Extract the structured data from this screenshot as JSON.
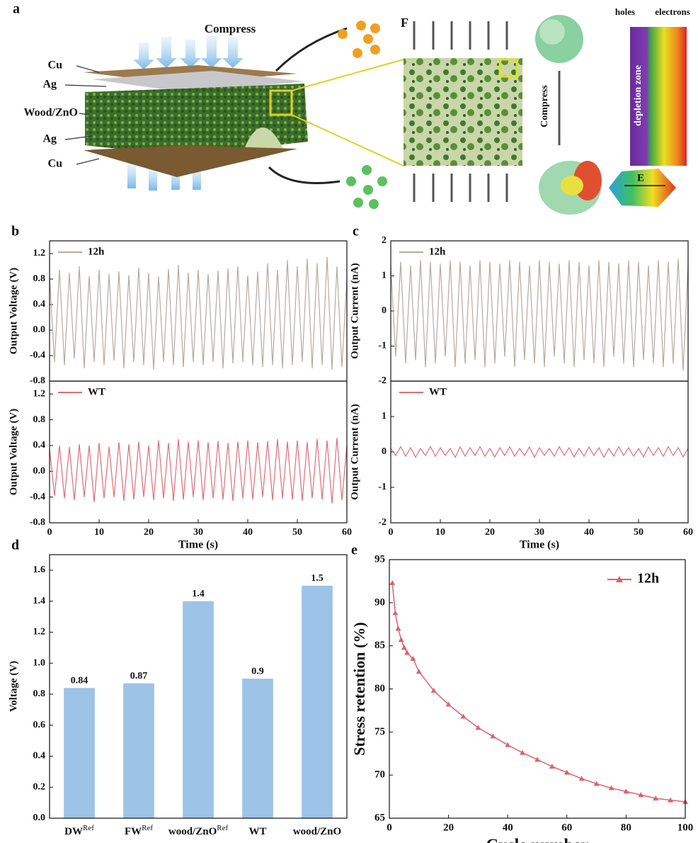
{
  "illustration": {
    "panel": "a",
    "compress_top": "Compress",
    "layer_1": "Cu",
    "layer_2": "Ag",
    "layer_3": "Wood/ZnO",
    "layer_4": "Ag",
    "layer_5": "Cu",
    "force": "F",
    "holes": "holes",
    "electrons": "electrons",
    "depletion": "depletion zone",
    "compress_side": "Compress",
    "field": "E"
  },
  "chart_data": [
    {
      "type": "line",
      "panel": "b",
      "ylabel": "Output Voltage (V)",
      "xlim": [
        0,
        60
      ],
      "ylim": [
        -0.8,
        1.4
      ],
      "yticks": [
        -0.8,
        -0.4,
        {
          "value": 0,
          "label": "0.0"
        },
        0.4,
        0.8,
        1.2
      ],
      "x": [
        0,
        1,
        2,
        3,
        4,
        5,
        6,
        7,
        8,
        9,
        10,
        11,
        12,
        13,
        14,
        15,
        16,
        17,
        18,
        19,
        20,
        21,
        22,
        23,
        24,
        25,
        26,
        27,
        28,
        29,
        30,
        31,
        32,
        33,
        34,
        35,
        36,
        37,
        38,
        39,
        40,
        41,
        42,
        43,
        44,
        45,
        46,
        47,
        48,
        49,
        50,
        51,
        52,
        53,
        54,
        55,
        56,
        57,
        58,
        59,
        60
      ],
      "series": [
        {
          "name": "12h",
          "color": "#b5aaa3",
          "values": [
            0.85,
            -0.5,
            0.95,
            -0.55,
            0.9,
            -0.45,
            1.0,
            -0.6,
            0.85,
            -0.5,
            0.95,
            -0.55,
            0.88,
            -0.48,
            0.92,
            -0.6,
            0.86,
            -0.5,
            0.98,
            -0.55,
            0.9,
            -0.62,
            0.84,
            -0.5,
            0.96,
            -0.55,
            1.02,
            -0.58,
            0.9,
            -0.5,
            0.95,
            -0.55,
            0.88,
            -0.5,
            0.93,
            -0.6,
            0.97,
            -0.52,
            1.0,
            -0.5,
            0.86,
            -0.55,
            0.92,
            -0.58,
            1.05,
            -0.55,
            0.95,
            -0.6,
            1.1,
            -0.55,
            1.0,
            -0.5,
            1.12,
            -0.6,
            1.05,
            -0.55,
            1.15,
            -0.62,
            1.0,
            -0.58,
            0.8
          ]
        }
      ]
    },
    {
      "type": "line",
      "ylabel": "Output Voltage (V)",
      "xlabel": "Time (s)",
      "xlim": [
        0,
        60
      ],
      "xticks": [
        0,
        10,
        20,
        30,
        40,
        50,
        60
      ],
      "ylim": [
        -0.8,
        1.4
      ],
      "yticks": [
        -0.8,
        -0.4,
        {
          "value": 0,
          "label": "0.0"
        },
        0.4,
        0.8,
        1.2
      ],
      "x": [
        0,
        1,
        2,
        3,
        4,
        5,
        6,
        7,
        8,
        9,
        10,
        11,
        12,
        13,
        14,
        15,
        16,
        17,
        18,
        19,
        20,
        21,
        22,
        23,
        24,
        25,
        26,
        27,
        28,
        29,
        30,
        31,
        32,
        33,
        34,
        35,
        36,
        37,
        38,
        39,
        40,
        41,
        42,
        43,
        44,
        45,
        46,
        47,
        48,
        49,
        50,
        51,
        52,
        53,
        54,
        55,
        56,
        57,
        58,
        59,
        60
      ],
      "series": [
        {
          "name": "WT",
          "color": "#de6f76",
          "values": [
            0.35,
            -0.38,
            0.4,
            -0.42,
            0.38,
            -0.45,
            0.42,
            -0.4,
            0.4,
            -0.48,
            0.44,
            -0.42,
            0.38,
            -0.4,
            0.45,
            -0.46,
            0.42,
            -0.44,
            0.46,
            -0.4,
            0.4,
            -0.45,
            0.48,
            -0.42,
            0.44,
            -0.46,
            0.5,
            -0.44,
            0.46,
            -0.4,
            0.48,
            -0.45,
            0.45,
            -0.42,
            0.47,
            -0.44,
            0.44,
            -0.46,
            0.46,
            -0.42,
            0.48,
            -0.44,
            0.45,
            -0.4,
            0.47,
            -0.45,
            0.5,
            -0.42,
            0.46,
            -0.44,
            0.48,
            -0.46,
            0.45,
            -0.42,
            0.5,
            -0.44,
            0.48,
            -0.5,
            0.52,
            -0.45,
            0.4
          ]
        }
      ]
    },
    {
      "type": "line",
      "panel": "c",
      "ylabel": "Output Current (nA)",
      "xlim": [
        0,
        60
      ],
      "ylim": [
        -2,
        2
      ],
      "yticks": [
        -2,
        -1,
        0,
        1,
        2
      ],
      "x": [
        0,
        1,
        2,
        3,
        4,
        5,
        6,
        7,
        8,
        9,
        10,
        11,
        12,
        13,
        14,
        15,
        16,
        17,
        18,
        19,
        20,
        21,
        22,
        23,
        24,
        25,
        26,
        27,
        28,
        29,
        30,
        31,
        32,
        33,
        34,
        35,
        36,
        37,
        38,
        39,
        40,
        41,
        42,
        43,
        44,
        45,
        46,
        47,
        48,
        49,
        50,
        51,
        52,
        53,
        54,
        55,
        56,
        57,
        58,
        59,
        60
      ],
      "series": [
        {
          "name": "12h",
          "color": "#b5aaa3",
          "values": [
            1.3,
            -1.3,
            1.4,
            -1.5,
            1.3,
            -1.4,
            1.45,
            -1.6,
            1.4,
            -1.5,
            1.35,
            -1.3,
            1.45,
            -1.6,
            1.4,
            -1.5,
            1.3,
            -1.4,
            1.45,
            -1.6,
            1.4,
            -1.5,
            1.35,
            -1.3,
            1.45,
            -1.6,
            1.4,
            -1.4,
            1.3,
            -1.5,
            1.45,
            -1.6,
            1.4,
            -1.3,
            1.35,
            -1.5,
            1.45,
            -1.6,
            1.4,
            -1.4,
            1.3,
            -1.5,
            1.45,
            -1.6,
            1.4,
            -1.3,
            1.35,
            -1.5,
            1.45,
            -1.6,
            1.4,
            -1.4,
            1.3,
            -1.5,
            1.45,
            -1.6,
            1.4,
            -1.5,
            1.48,
            -1.7,
            1.3
          ]
        }
      ]
    },
    {
      "type": "line",
      "ylabel": "Output Current (nA)",
      "xlabel": "Time (s)",
      "xlim": [
        0,
        60
      ],
      "xticks": [
        0,
        10,
        20,
        30,
        40,
        50,
        60
      ],
      "ylim": [
        -2,
        2
      ],
      "yticks": [
        -2,
        -1,
        0,
        1,
        2
      ],
      "x": [
        0,
        1,
        2,
        3,
        4,
        5,
        6,
        7,
        8,
        9,
        10,
        11,
        12,
        13,
        14,
        15,
        16,
        17,
        18,
        19,
        20,
        21,
        22,
        23,
        24,
        25,
        26,
        27,
        28,
        29,
        30,
        31,
        32,
        33,
        34,
        35,
        36,
        37,
        38,
        39,
        40,
        41,
        42,
        43,
        44,
        45,
        46,
        47,
        48,
        49,
        50,
        51,
        52,
        53,
        54,
        55,
        56,
        57,
        58,
        59,
        60
      ],
      "series": [
        {
          "name": "WT",
          "color": "#de6f76",
          "values": [
            0.1,
            -0.1,
            0.15,
            -0.12,
            0.12,
            -0.15,
            0.1,
            -0.1,
            0.15,
            -0.12,
            0.12,
            -0.1,
            0.1,
            -0.15,
            0.14,
            -0.12,
            0.12,
            -0.1,
            0.15,
            -0.12,
            0.1,
            -0.14,
            0.12,
            -0.1,
            0.15,
            -0.12,
            0.1,
            -0.1,
            0.14,
            -0.15,
            0.12,
            -0.1,
            0.1,
            -0.12,
            0.15,
            -0.1,
            0.12,
            -0.14,
            0.1,
            -0.12,
            0.14,
            -0.1,
            0.12,
            -0.15,
            0.1,
            -0.12,
            0.15,
            -0.1,
            0.12,
            -0.12,
            0.1,
            -0.14,
            0.14,
            -0.1,
            0.12,
            -0.12,
            0.15,
            -0.1,
            0.12,
            -0.14,
            0.1
          ]
        }
      ]
    },
    {
      "type": "bar",
      "panel": "d",
      "ylabel": "Voltage (V)",
      "color": "#9dc3e6",
      "ylim": [
        0,
        1.7
      ],
      "yticks": [
        {
          "value": 0,
          "label": "0.0"
        },
        0.2,
        0.4,
        0.6,
        0.8,
        {
          "value": 1,
          "label": "1.0"
        },
        1.2,
        1.4,
        1.6
      ],
      "categories": [
        "DW",
        "FW",
        "wood/ZnO",
        "WT",
        "wood/ZnO"
      ],
      "category_superscripts": [
        "Ref",
        "Ref",
        "Ref",
        null,
        null
      ],
      "values": [
        0.84,
        0.87,
        1.4,
        0.9,
        1.5
      ]
    },
    {
      "type": "line",
      "panel": "e",
      "ylabel": "Stress retention (%)",
      "xlabel": "Cycle number",
      "xlim": [
        0,
        100
      ],
      "xticks": [
        0,
        20,
        40,
        60,
        80,
        100
      ],
      "ylim": [
        65,
        95
      ],
      "yticks": [
        65,
        70,
        75,
        80,
        85,
        90,
        95
      ],
      "legend": "upper right",
      "marker": "triangle",
      "x": [
        1,
        2,
        3,
        4,
        5,
        6,
        8,
        10,
        15,
        20,
        25,
        30,
        35,
        40,
        45,
        50,
        55,
        60,
        65,
        70,
        75,
        80,
        85,
        90,
        95,
        100
      ],
      "series": [
        {
          "name": "12h",
          "color": "#d9646e",
          "values": [
            92.3,
            88.8,
            87,
            85.7,
            84.8,
            84.2,
            83.5,
            82,
            79.8,
            78.2,
            76.8,
            75.5,
            74.5,
            73.5,
            72.6,
            71.8,
            71,
            70.3,
            69.6,
            69,
            68.5,
            68.1,
            67.7,
            67.3,
            67.1,
            66.9
          ]
        }
      ]
    }
  ]
}
